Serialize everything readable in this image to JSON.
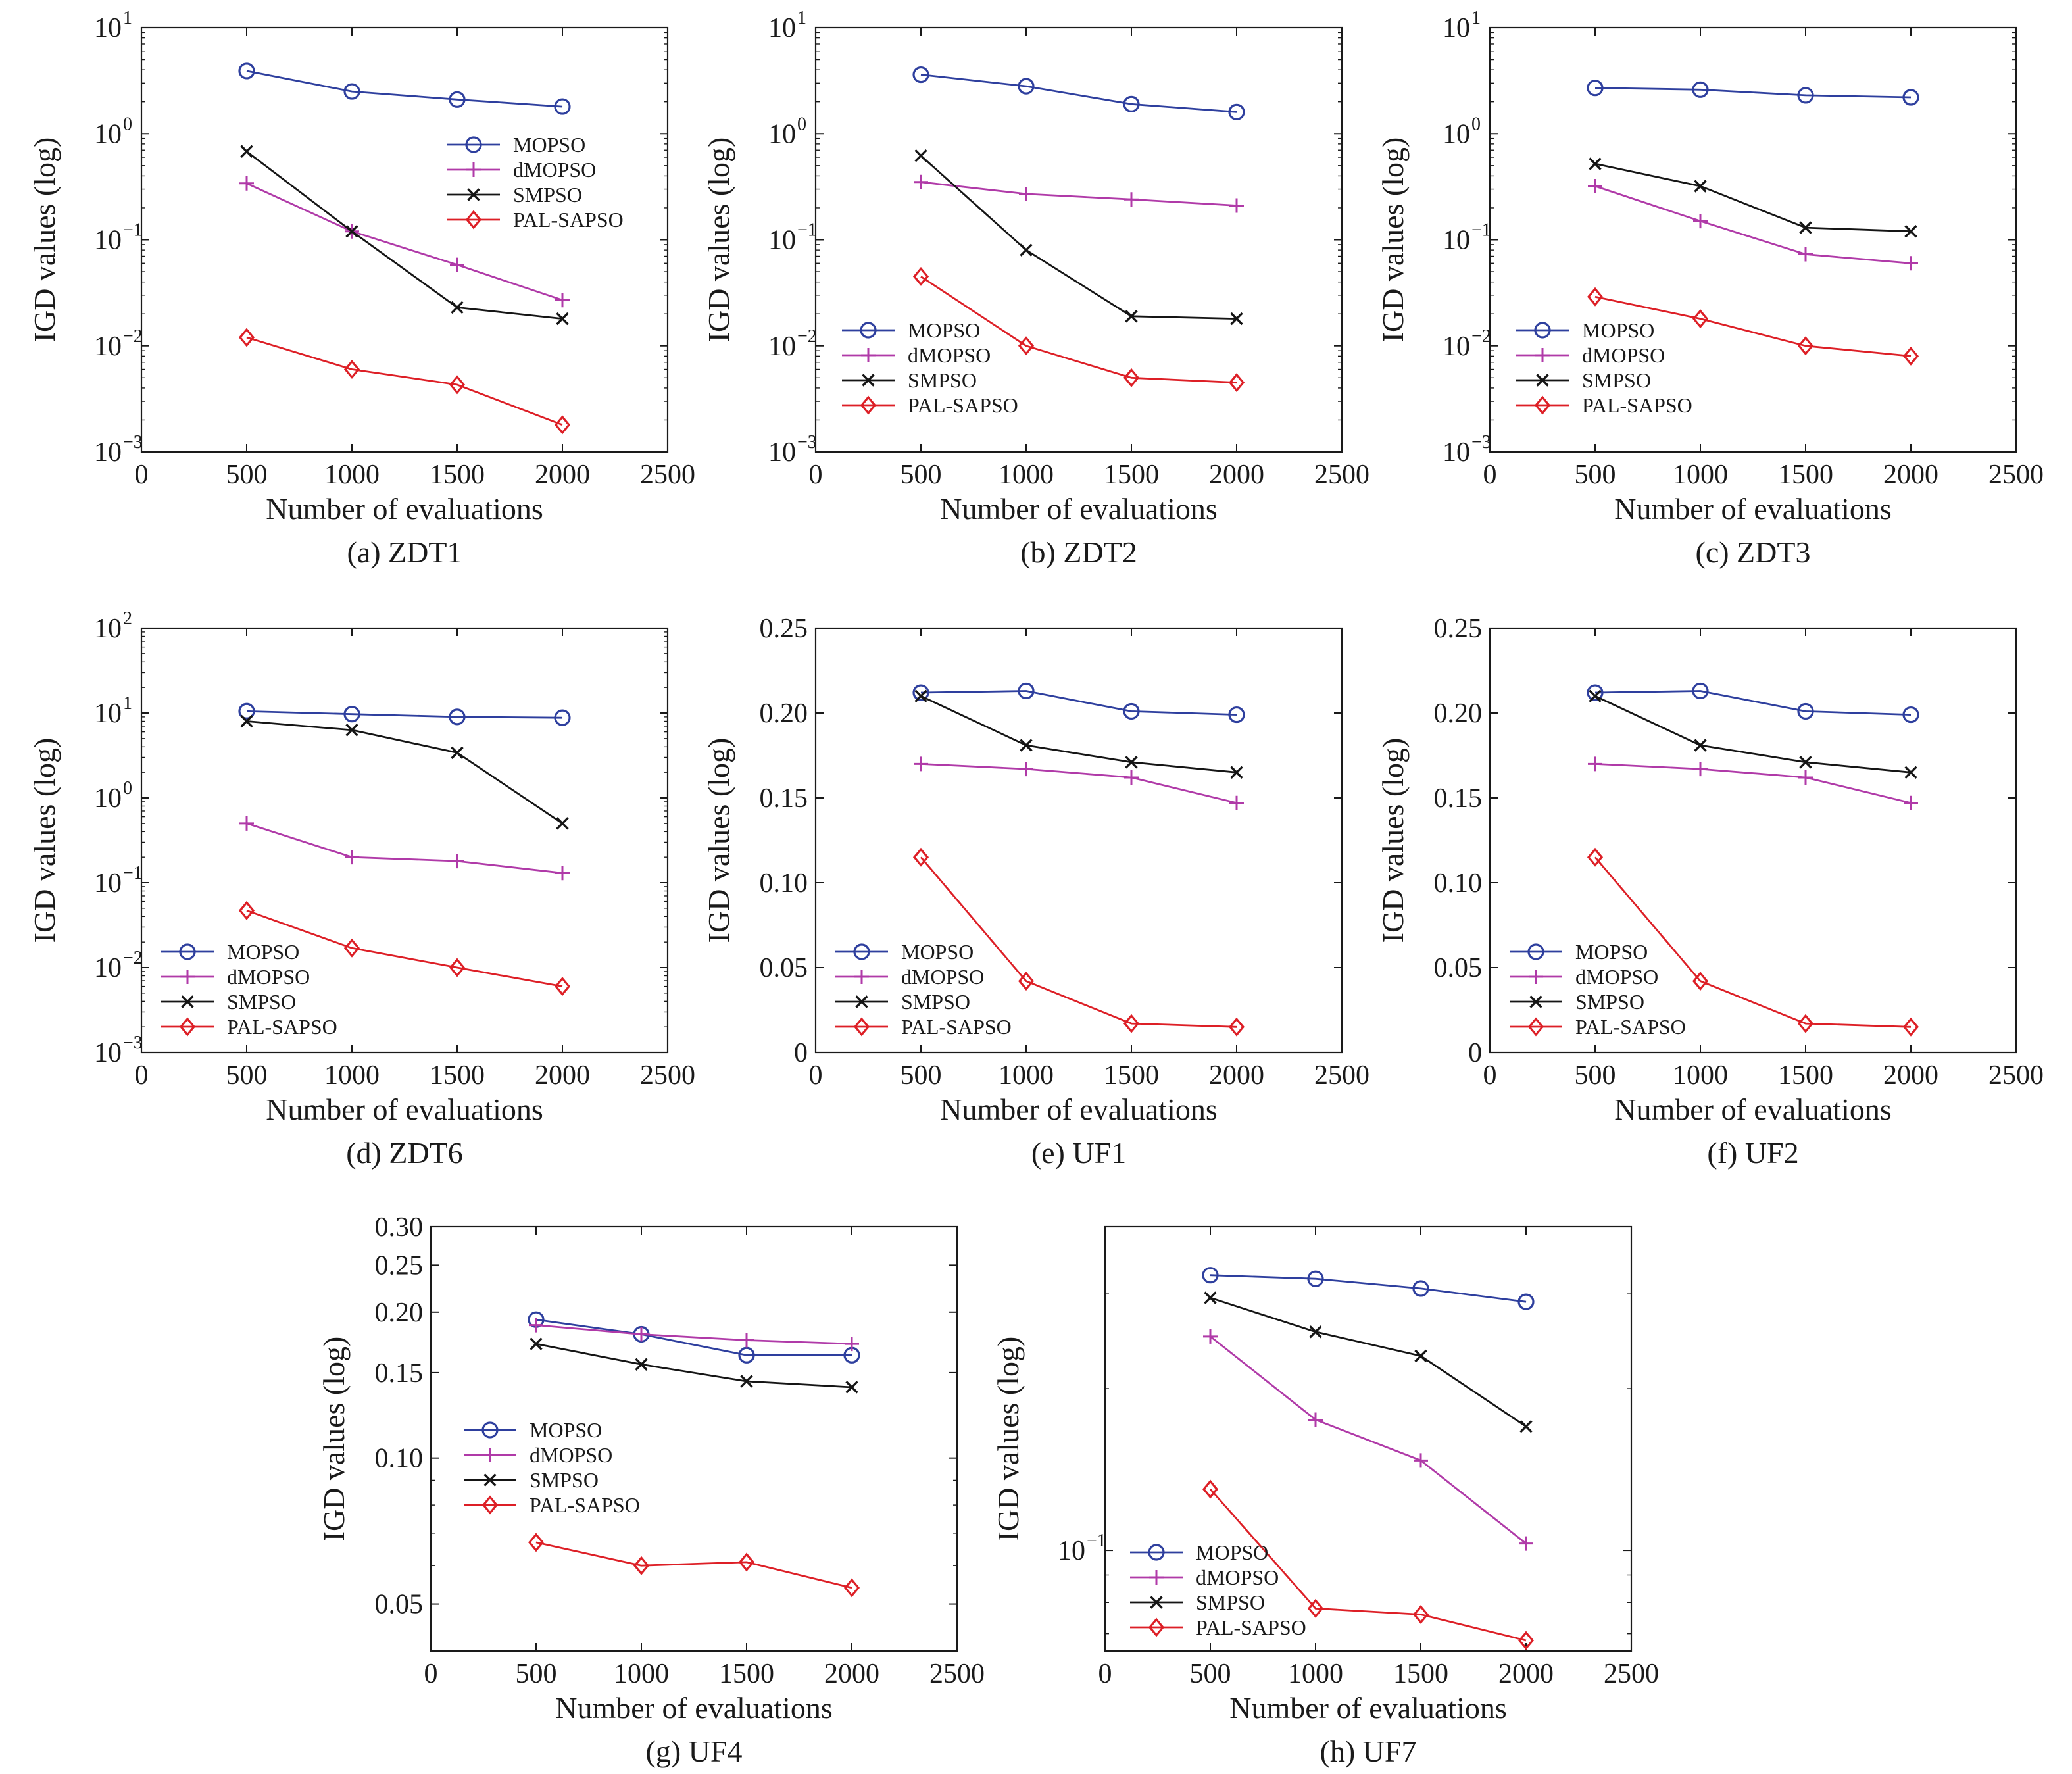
{
  "figure": {
    "colors": {
      "MOPSO": "#2e3f9e",
      "dMOPSO": "#b03aa8",
      "SMPSO": "#151515",
      "PAL-SAPSO": "#dd1f26"
    },
    "markers": {
      "MOPSO": "circle",
      "dMOPSO": "plus",
      "SMPSO": "cross",
      "PAL-SAPSO": "diamond"
    }
  },
  "chart_data": [
    {
      "id": "a",
      "type": "line",
      "scale": "log",
      "caption": "(a) ZDT1",
      "xlabel": "Number of evaluations",
      "ylabel": "IGD values (log)",
      "xlim": [
        0,
        2500
      ],
      "ylim": [
        0.001,
        10
      ],
      "xticks": [
        0,
        500,
        1000,
        1500,
        2000,
        2500
      ],
      "yticks": [
        {
          "v": 0.001,
          "base": "10",
          "exp": "−3"
        },
        {
          "v": 0.01,
          "base": "10",
          "exp": "−2"
        },
        {
          "v": 0.1,
          "base": "10",
          "exp": "−1"
        },
        {
          "v": 1,
          "base": "10",
          "exp": "0"
        },
        {
          "v": 10,
          "base": "10",
          "exp": "1"
        }
      ],
      "legend": "upper-right",
      "x": [
        500,
        1000,
        1500,
        2000
      ],
      "series": [
        {
          "name": "MOPSO",
          "values": [
            3.9,
            2.5,
            2.1,
            1.8
          ]
        },
        {
          "name": "dMOPSO",
          "values": [
            0.34,
            0.12,
            0.058,
            0.027
          ]
        },
        {
          "name": "SMPSO",
          "values": [
            0.68,
            0.12,
            0.023,
            0.018
          ]
        },
        {
          "name": "PAL-SAPSO",
          "values": [
            0.012,
            0.006,
            0.0043,
            0.0018
          ]
        }
      ]
    },
    {
      "id": "b",
      "type": "line",
      "scale": "log",
      "caption": "(b) ZDT2",
      "xlabel": "Number of evaluations",
      "ylabel": "IGD values (log)",
      "xlim": [
        0,
        2500
      ],
      "ylim": [
        0.001,
        10
      ],
      "xticks": [
        0,
        500,
        1000,
        1500,
        2000,
        2500
      ],
      "yticks": [
        {
          "v": 0.001,
          "base": "10",
          "exp": "−3"
        },
        {
          "v": 0.01,
          "base": "10",
          "exp": "−2"
        },
        {
          "v": 0.1,
          "base": "10",
          "exp": "−1"
        },
        {
          "v": 1,
          "base": "10",
          "exp": "0"
        },
        {
          "v": 10,
          "base": "10",
          "exp": "1"
        }
      ],
      "legend": "lower-left",
      "x": [
        500,
        1000,
        1500,
        2000
      ],
      "series": [
        {
          "name": "MOPSO",
          "values": [
            3.6,
            2.8,
            1.9,
            1.6
          ]
        },
        {
          "name": "dMOPSO",
          "values": [
            0.35,
            0.27,
            0.24,
            0.21
          ]
        },
        {
          "name": "SMPSO",
          "values": [
            0.62,
            0.08,
            0.019,
            0.018
          ]
        },
        {
          "name": "PAL-SAPSO",
          "values": [
            0.045,
            0.01,
            0.005,
            0.0045
          ]
        }
      ]
    },
    {
      "id": "c",
      "type": "line",
      "scale": "log",
      "caption": "(c) ZDT3",
      "xlabel": "Number of evaluations",
      "ylabel": "IGD values (log)",
      "xlim": [
        0,
        2500
      ],
      "ylim": [
        0.001,
        10
      ],
      "xticks": [
        0,
        500,
        1000,
        1500,
        2000,
        2500
      ],
      "yticks": [
        {
          "v": 0.001,
          "base": "10",
          "exp": "−3"
        },
        {
          "v": 0.01,
          "base": "10",
          "exp": "−2"
        },
        {
          "v": 0.1,
          "base": "10",
          "exp": "−1"
        },
        {
          "v": 1,
          "base": "10",
          "exp": "0"
        },
        {
          "v": 10,
          "base": "10",
          "exp": "1"
        }
      ],
      "legend": "lower-left",
      "x": [
        500,
        1000,
        1500,
        2000
      ],
      "series": [
        {
          "name": "MOPSO",
          "values": [
            2.7,
            2.6,
            2.3,
            2.2
          ]
        },
        {
          "name": "dMOPSO",
          "values": [
            0.32,
            0.15,
            0.073,
            0.06
          ]
        },
        {
          "name": "SMPSO",
          "values": [
            0.52,
            0.32,
            0.13,
            0.12
          ]
        },
        {
          "name": "PAL-SAPSO",
          "values": [
            0.029,
            0.018,
            0.01,
            0.008
          ]
        }
      ]
    },
    {
      "id": "d",
      "type": "line",
      "scale": "log",
      "caption": "(d) ZDT6",
      "xlabel": "Number of evaluations",
      "ylabel": "IGD values (log)",
      "xlim": [
        0,
        2500
      ],
      "ylim": [
        0.001,
        100
      ],
      "xticks": [
        0,
        500,
        1000,
        1500,
        2000,
        2500
      ],
      "yticks": [
        {
          "v": 0.001,
          "base": "10",
          "exp": "−3"
        },
        {
          "v": 0.01,
          "base": "10",
          "exp": "−2"
        },
        {
          "v": 0.1,
          "base": "10",
          "exp": "−1"
        },
        {
          "v": 1,
          "base": "10",
          "exp": "0"
        },
        {
          "v": 10,
          "base": "10",
          "exp": "1"
        },
        {
          "v": 100,
          "base": "10",
          "exp": "2"
        }
      ],
      "legend": "lower-left",
      "x": [
        500,
        1000,
        1500,
        2000
      ],
      "series": [
        {
          "name": "MOPSO",
          "values": [
            10.5,
            9.7,
            9.0,
            8.8
          ]
        },
        {
          "name": "dMOPSO",
          "values": [
            0.5,
            0.2,
            0.18,
            0.13
          ]
        },
        {
          "name": "SMPSO",
          "values": [
            8.0,
            6.3,
            3.4,
            0.5
          ]
        },
        {
          "name": "PAL-SAPSO",
          "values": [
            0.047,
            0.017,
            0.01,
            0.006
          ]
        }
      ]
    },
    {
      "id": "e",
      "type": "line",
      "scale": "linear",
      "caption": "(e) UF1",
      "xlabel": "Number of evaluations",
      "ylabel": "IGD values (log)",
      "xlim": [
        0,
        2500
      ],
      "ylim": [
        0,
        0.25
      ],
      "xticks": [
        0,
        500,
        1000,
        1500,
        2000,
        2500
      ],
      "yticks": [
        {
          "v": 0,
          "label": "0"
        },
        {
          "v": 0.05,
          "label": "0.05"
        },
        {
          "v": 0.1,
          "label": "0.10"
        },
        {
          "v": 0.15,
          "label": "0.15"
        },
        {
          "v": 0.2,
          "label": "0.20"
        },
        {
          "v": 0.25,
          "label": "0.25"
        }
      ],
      "legend": "lower-left",
      "x": [
        500,
        1000,
        1500,
        2000
      ],
      "series": [
        {
          "name": "MOPSO",
          "values": [
            0.212,
            0.213,
            0.201,
            0.199
          ]
        },
        {
          "name": "dMOPSO",
          "values": [
            0.17,
            0.167,
            0.162,
            0.147
          ]
        },
        {
          "name": "SMPSO",
          "values": [
            0.21,
            0.181,
            0.171,
            0.165
          ]
        },
        {
          "name": "PAL-SAPSO",
          "values": [
            0.115,
            0.042,
            0.017,
            0.015
          ]
        }
      ]
    },
    {
      "id": "f",
      "type": "line",
      "scale": "linear",
      "caption": "(f) UF2",
      "xlabel": "Number of evaluations",
      "ylabel": "IGD values (log)",
      "xlim": [
        0,
        2500
      ],
      "ylim": [
        0,
        0.25
      ],
      "xticks": [
        0,
        500,
        1000,
        1500,
        2000,
        2500
      ],
      "yticks": [
        {
          "v": 0,
          "label": "0"
        },
        {
          "v": 0.05,
          "label": "0.05"
        },
        {
          "v": 0.1,
          "label": "0.10"
        },
        {
          "v": 0.15,
          "label": "0.15"
        },
        {
          "v": 0.2,
          "label": "0.20"
        },
        {
          "v": 0.25,
          "label": "0.25"
        }
      ],
      "legend": "lower-left",
      "x": [
        500,
        1000,
        1500,
        2000
      ],
      "series": [
        {
          "name": "MOPSO",
          "values": [
            0.212,
            0.213,
            0.201,
            0.199
          ]
        },
        {
          "name": "dMOPSO",
          "values": [
            0.17,
            0.167,
            0.162,
            0.147
          ]
        },
        {
          "name": "SMPSO",
          "values": [
            0.21,
            0.181,
            0.171,
            0.165
          ]
        },
        {
          "name": "PAL-SAPSO",
          "values": [
            0.115,
            0.042,
            0.017,
            0.015
          ]
        }
      ]
    },
    {
      "id": "g",
      "type": "line",
      "scale": "log",
      "caption": "(g) UF4",
      "xlabel": "Number of evaluations",
      "ylabel": "IGD values (log)",
      "xlim": [
        0,
        2500
      ],
      "ylim": [
        0.04,
        0.3
      ],
      "xticks": [
        0,
        500,
        1000,
        1500,
        2000,
        2500
      ],
      "yticks": [
        {
          "v": 0.05,
          "label": "0.05"
        },
        {
          "v": 0.1,
          "label": "0.10"
        },
        {
          "v": 0.15,
          "label": "0.15"
        },
        {
          "v": 0.2,
          "label": "0.20"
        },
        {
          "v": 0.25,
          "label": "0.25"
        },
        {
          "v": 0.3,
          "label": "0.30"
        }
      ],
      "legend": "lower-left",
      "x": [
        500,
        1000,
        1500,
        2000
      ],
      "series": [
        {
          "name": "MOPSO",
          "values": [
            0.193,
            0.18,
            0.163,
            0.163
          ]
        },
        {
          "name": "dMOPSO",
          "values": [
            0.188,
            0.18,
            0.175,
            0.172
          ]
        },
        {
          "name": "SMPSO",
          "values": [
            0.172,
            0.156,
            0.144,
            0.14
          ]
        },
        {
          "name": "PAL-SAPSO",
          "values": [
            0.067,
            0.06,
            0.061,
            0.054
          ]
        }
      ]
    },
    {
      "id": "h",
      "type": "line",
      "scale": "log",
      "caption": "(h) UF7",
      "xlabel": "Number of evaluations",
      "ylabel": "IGD values (log)",
      "xlim": [
        0,
        2500
      ],
      "ylim": [
        0.065,
        0.4
      ],
      "xticks": [
        0,
        500,
        1000,
        1500,
        2000,
        2500
      ],
      "yticks": [
        {
          "v": 0.1,
          "base": "10",
          "exp": "−1"
        }
      ],
      "legend": "lower-left",
      "x": [
        500,
        1000,
        1500,
        2000
      ],
      "series": [
        {
          "name": "MOPSO",
          "values": [
            0.325,
            0.32,
            0.307,
            0.29
          ]
        },
        {
          "name": "dMOPSO",
          "values": [
            0.25,
            0.175,
            0.147,
            0.103
          ]
        },
        {
          "name": "SMPSO",
          "values": [
            0.295,
            0.255,
            0.23,
            0.17
          ]
        },
        {
          "name": "PAL-SAPSO",
          "values": [
            0.13,
            0.078,
            0.076,
            0.068
          ]
        }
      ]
    }
  ]
}
